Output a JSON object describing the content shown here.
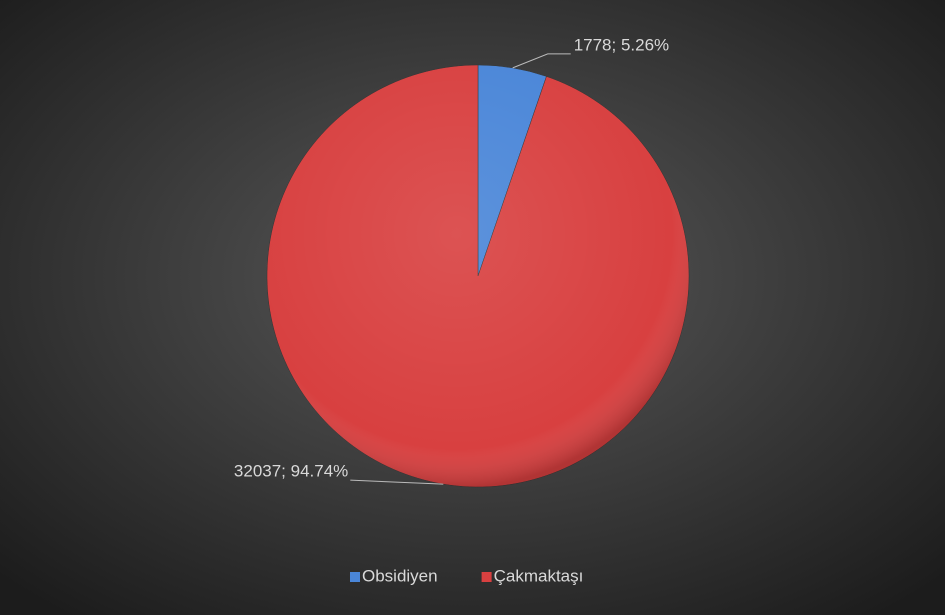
{
  "chart_data": {
    "type": "pie",
    "categories": [
      "Obsidiyen",
      "Çakmaktaşı"
    ],
    "values": [
      1778,
      32037
    ],
    "value_labels": [
      "1778; 5.26%",
      "32037; 94.74%"
    ],
    "colors": [
      "#4a86d8",
      "#d84040"
    ],
    "legend": "bottom"
  }
}
